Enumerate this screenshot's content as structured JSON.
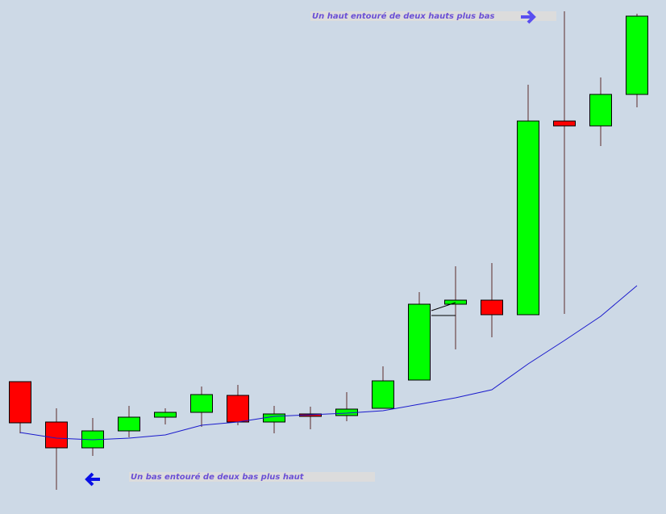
{
  "chart_data": {
    "type": "candlestick",
    "open": [
      164,
      114,
      82,
      103,
      120,
      126,
      147,
      114,
      124,
      122,
      131,
      166,
      260,
      265,
      247,
      487,
      481,
      520
    ],
    "high": [
      164,
      131,
      119,
      134,
      131,
      158,
      160,
      134,
      133,
      151,
      183,
      275,
      307,
      311,
      532,
      623,
      541,
      620
    ],
    "low": [
      100,
      30,
      72,
      95,
      111,
      108,
      110,
      100,
      105,
      115,
      131,
      166,
      204,
      219,
      247,
      248,
      456,
      504
    ],
    "close": [
      113,
      82,
      103,
      120,
      126,
      148,
      114,
      124,
      121,
      130,
      165,
      260,
      265,
      247,
      487,
      481,
      520,
      617
    ],
    "up_color": "#00ff00",
    "down_color": "#ff0000",
    "moving_average": {
      "color": "#1a1acc",
      "values": [
        101,
        94,
        92,
        94,
        98,
        110,
        114,
        121,
        123,
        125,
        128,
        136,
        144,
        154,
        186,
        215,
        245,
        283
      ]
    },
    "ylim": [
      0,
      637
    ],
    "annotations": [
      "Un haut entouré de deux hauts plus bas",
      "Un bas entouré de deux bas plus haut"
    ]
  }
}
